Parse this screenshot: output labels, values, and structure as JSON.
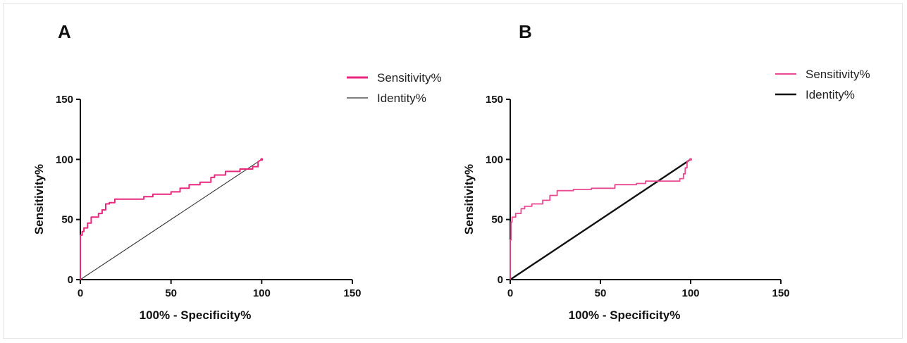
{
  "chart_data": [
    {
      "panel_label": "A",
      "type": "line",
      "xlabel": "100% - Specificity%",
      "ylabel": "Sensitivity%",
      "xlim": [
        0,
        150
      ],
      "ylim": [
        0,
        150
      ],
      "xticks": [
        "0",
        "50",
        "100",
        "150"
      ],
      "yticks": [
        "0",
        "50",
        "100",
        "150"
      ],
      "grid": false,
      "legend_position": "top-right",
      "series": [
        {
          "name": "Sensitivity%",
          "color": "#e8277f",
          "style": "step",
          "x": [
            0,
            0,
            1,
            1,
            2,
            2,
            4,
            4,
            6,
            6,
            10,
            10,
            12,
            12,
            14,
            14,
            16,
            16,
            19,
            19,
            25,
            25,
            35,
            35,
            40,
            40,
            50,
            50,
            55,
            55,
            60,
            60,
            66,
            66,
            72,
            72,
            74,
            74,
            80,
            80,
            88,
            88,
            95,
            95,
            98,
            98,
            100
          ],
          "y": [
            0,
            37,
            37,
            40,
            40,
            43,
            43,
            47,
            47,
            52,
            52,
            55,
            55,
            58,
            58,
            63,
            63,
            64,
            64,
            67,
            67,
            67,
            67,
            69,
            69,
            71,
            71,
            73,
            73,
            76,
            76,
            79,
            79,
            81,
            81,
            85,
            85,
            87,
            87,
            90,
            90,
            92,
            92,
            94,
            94,
            98,
            100
          ]
        },
        {
          "name": "Identity%",
          "color": "#333333",
          "style": "line",
          "x": [
            0,
            100
          ],
          "y": [
            0,
            100
          ]
        }
      ]
    },
    {
      "panel_label": "B",
      "type": "line",
      "xlabel": "100% - Specificity%",
      "ylabel": "Sensitivity%",
      "xlim": [
        0,
        150
      ],
      "ylim": [
        0,
        150
      ],
      "xticks": [
        "0",
        "50",
        "100",
        "150"
      ],
      "yticks": [
        "0",
        "50",
        "100",
        "150"
      ],
      "grid": false,
      "legend_position": "top-right",
      "series": [
        {
          "name": "Sensitivity%",
          "color": "#ea4a92",
          "style": "step",
          "x": [
            0,
            0,
            0.5,
            0.5,
            1,
            1,
            3,
            3,
            6,
            6,
            8,
            8,
            12,
            12,
            18,
            18,
            22,
            22,
            26,
            26,
            35,
            35,
            45,
            45,
            58,
            58,
            70,
            70,
            75,
            75,
            80,
            80,
            94,
            94,
            96,
            96,
            97,
            97,
            98,
            98,
            100
          ],
          "y": [
            0,
            33,
            33,
            48,
            48,
            52,
            52,
            55,
            55,
            59,
            59,
            61,
            61,
            63,
            63,
            66,
            66,
            70,
            70,
            74,
            74,
            75,
            75,
            76,
            76,
            79,
            79,
            80,
            80,
            82,
            82,
            82,
            82,
            84,
            84,
            88,
            88,
            93,
            93,
            98,
            100
          ]
        },
        {
          "name": "Identity%",
          "color": "#111111",
          "style": "line",
          "x": [
            0,
            100
          ],
          "y": [
            0,
            100
          ]
        }
      ]
    }
  ]
}
